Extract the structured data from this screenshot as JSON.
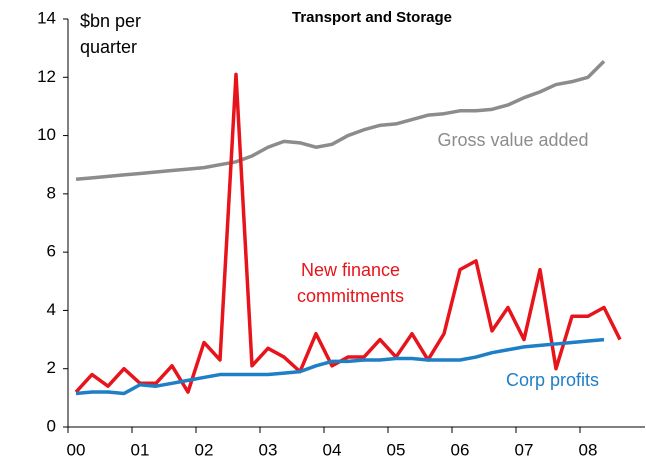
{
  "chart_data": {
    "type": "line",
    "title": "Transport and Storage",
    "y_label": "$bn per quarter",
    "categories": [
      "00",
      null,
      null,
      null,
      "01",
      null,
      null,
      null,
      "02",
      null,
      null,
      null,
      "03",
      null,
      null,
      null,
      "04",
      null,
      null,
      null,
      "05",
      null,
      null,
      null,
      "06",
      null,
      null,
      null,
      "07",
      null,
      null,
      null,
      "08",
      null,
      null
    ],
    "series": [
      {
        "name": "Gross value  added",
        "color": "#8c8c8c",
        "values": [
          8.5,
          8.55,
          8.6,
          8.65,
          8.7,
          8.75,
          8.8,
          8.85,
          8.9,
          9.0,
          9.1,
          9.3,
          9.6,
          9.8,
          9.75,
          9.6,
          9.7,
          10.0,
          10.2,
          10.35,
          10.4,
          10.55,
          10.7,
          10.75,
          10.85,
          10.85,
          10.9,
          11.05,
          11.3,
          11.5,
          11.75,
          11.85,
          12.0,
          12.55,
          null
        ]
      },
      {
        "name": "New finance commitments",
        "color": "#e8141b",
        "values": [
          1.2,
          1.8,
          1.4,
          2.0,
          1.5,
          1.5,
          2.1,
          1.2,
          2.9,
          2.3,
          12.1,
          2.1,
          2.7,
          2.4,
          1.9,
          3.2,
          2.1,
          2.4,
          2.4,
          3.0,
          2.4,
          3.2,
          2.3,
          3.2,
          5.4,
          5.7,
          3.3,
          4.1,
          3.0,
          5.4,
          2.0,
          3.8,
          3.8,
          4.1,
          3.0
        ]
      },
      {
        "name": "Corp profits",
        "color": "#1f7fc6",
        "values": [
          1.15,
          1.2,
          1.2,
          1.15,
          1.45,
          1.4,
          1.5,
          1.6,
          1.7,
          1.8,
          1.8,
          1.8,
          1.8,
          1.85,
          1.9,
          2.1,
          2.25,
          2.25,
          2.3,
          2.3,
          2.35,
          2.35,
          2.3,
          2.3,
          2.3,
          2.4,
          2.55,
          2.65,
          2.75,
          2.8,
          2.85,
          2.9,
          2.95,
          3.0,
          null
        ]
      }
    ],
    "ylim": [
      0,
      14
    ],
    "yticks": [
      0,
      2,
      4,
      6,
      8,
      10,
      12,
      14
    ],
    "grid": false
  }
}
